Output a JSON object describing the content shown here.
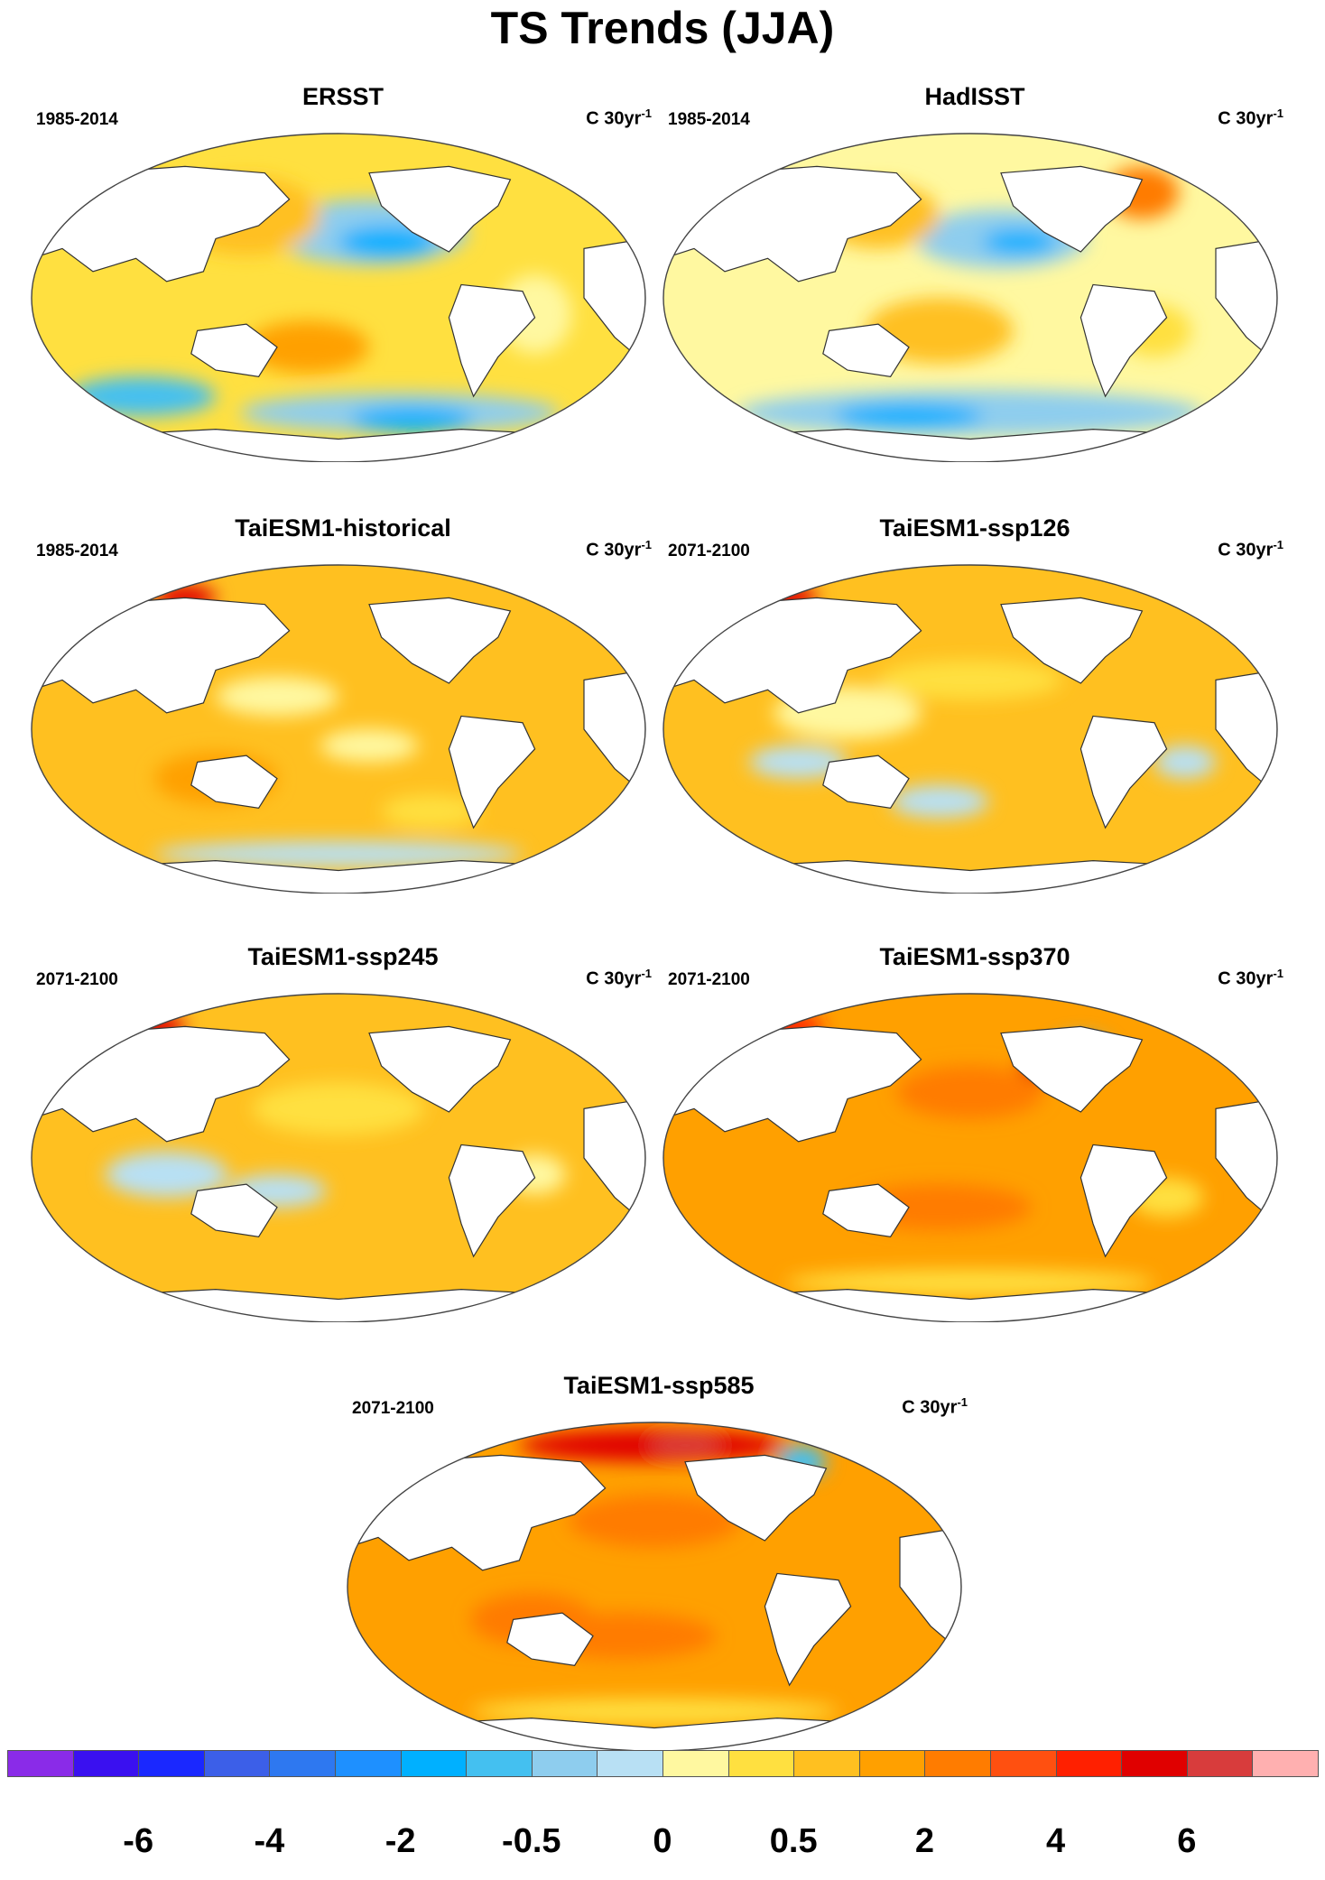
{
  "title": "TS Trends (JJA)",
  "unit_text": "C 30yr",
  "unit_exp": "-1",
  "panels": [
    {
      "title": "ERSST",
      "period": "1985-2014",
      "pattern": "ersst"
    },
    {
      "title": "HadISST",
      "period": "1985-2014",
      "pattern": "hadisst"
    },
    {
      "title": "TaiESM1-historical",
      "period": "1985-2014",
      "pattern": "hist"
    },
    {
      "title": "TaiESM1-ssp126",
      "period": "2071-2100",
      "pattern": "ssp126"
    },
    {
      "title": "TaiESM1-ssp245",
      "period": "2071-2100",
      "pattern": "ssp245"
    },
    {
      "title": "TaiESM1-ssp370",
      "period": "2071-2100",
      "pattern": "ssp370"
    },
    {
      "title": "TaiESM1-ssp585",
      "period": "2071-2100",
      "pattern": "ssp585"
    }
  ],
  "colorbar": {
    "colors": [
      "#8a2be8",
      "#3a10f0",
      "#1a28ff",
      "#3c5fe8",
      "#2e78f0",
      "#1e90ff",
      "#00b0ff",
      "#44c0f0",
      "#8ecdee",
      "#b8e0f4",
      "#fff8a0",
      "#ffe040",
      "#ffc020",
      "#ffa000",
      "#ff7c00",
      "#ff5010",
      "#ff2000",
      "#e00000",
      "#d83c3c",
      "#ffb0b0"
    ],
    "labels": [
      "-6",
      "-4",
      "-2",
      "-0.5",
      "0",
      "0.5",
      "2",
      "4",
      "6"
    ]
  }
}
